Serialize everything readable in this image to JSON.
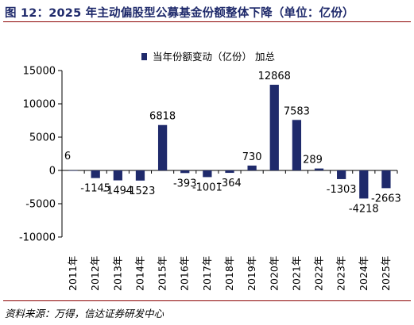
{
  "figure_title": "图 12：2025 年主动偏股型公募基金份额整体下降（单位：亿份）",
  "source": "资料来源：万得，信达证券研发中心",
  "colors": {
    "bar": "#1f2a6b",
    "title": "#1f2a6b",
    "rule": "#8b0000",
    "axis": "#000000"
  },
  "chart_data": {
    "type": "bar",
    "title": "",
    "xlabel": "",
    "ylabel": "",
    "legend": {
      "label": "当年份额变动（亿份） 加总",
      "position": "top-center"
    },
    "categories": [
      "2011年",
      "2012年",
      "2013年",
      "2014年",
      "2015年",
      "2016年",
      "2017年",
      "2018年",
      "2019年",
      "2020年",
      "2021年",
      "2022年",
      "2023年",
      "2024年",
      "2025年"
    ],
    "values": [
      6,
      -1145,
      -1494,
      -1523,
      6818,
      -393,
      -1001,
      -364,
      730,
      12868,
      7583,
      289,
      -1303,
      -4218,
      -2663
    ],
    "data_labels": [
      "6",
      "-1145",
      "-1494",
      "-1523",
      "6818",
      "-393",
      "-1001",
      "-364",
      "730",
      "12868",
      "7583",
      "289",
      "-1303",
      "-4218",
      "-2663"
    ],
    "yticks": [
      15000,
      10000,
      5000,
      0,
      -5000,
      -10000
    ],
    "ytick_labels": [
      "15000",
      "10000",
      "5000",
      "0",
      "-5000",
      "-10000"
    ],
    "ylim": [
      -10000,
      15000
    ],
    "grid": false
  }
}
